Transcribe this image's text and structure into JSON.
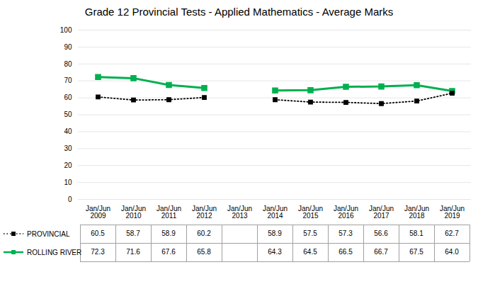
{
  "chart_data": {
    "type": "line",
    "title": "Grade 12 Provincial Tests - Applied Mathematics - Average Marks",
    "categories": [
      "Jan/Jun\n2009",
      "Jan/Jun\n2010",
      "Jan/Jun\n2011",
      "Jan/Jun\n2012",
      "Jan/Jun\n2013",
      "Jan/Jun\n2014",
      "Jan/Jun\n2015",
      "Jan/Jun\n2016",
      "Jan/Jun\n2017",
      "Jan/Jun\n2018",
      "Jan/Jun\n2019"
    ],
    "series": [
      {
        "name": "PROVINCIAL",
        "color": "#000000",
        "line_style": "dotted",
        "marker": "square",
        "values": [
          60.5,
          58.7,
          58.9,
          60.2,
          null,
          58.9,
          57.5,
          57.3,
          56.6,
          58.1,
          62.7
        ],
        "value_labels": [
          "60.5",
          "58.7",
          "58.9",
          "60.2",
          null,
          "58.9",
          "57.5",
          "57.3",
          "56.6",
          "58.1",
          "62.7"
        ]
      },
      {
        "name": "ROLLING RIVER",
        "color": "#00b050",
        "line_style": "solid",
        "marker": "square",
        "values": [
          72.3,
          71.6,
          67.6,
          65.8,
          null,
          64.3,
          64.5,
          66.5,
          66.7,
          67.5,
          64.0
        ],
        "value_labels": [
          "72.3",
          "71.6",
          "67.6",
          "65.8",
          null,
          "64.3",
          "64.5",
          "66.5",
          "66.7",
          "67.5",
          "64.0"
        ]
      }
    ],
    "ylim": [
      0,
      100
    ],
    "yticks": [
      0,
      10,
      20,
      30,
      40,
      50,
      60,
      70,
      80,
      90,
      100
    ],
    "grid": true,
    "legend": "bottom",
    "data_labels": true
  }
}
